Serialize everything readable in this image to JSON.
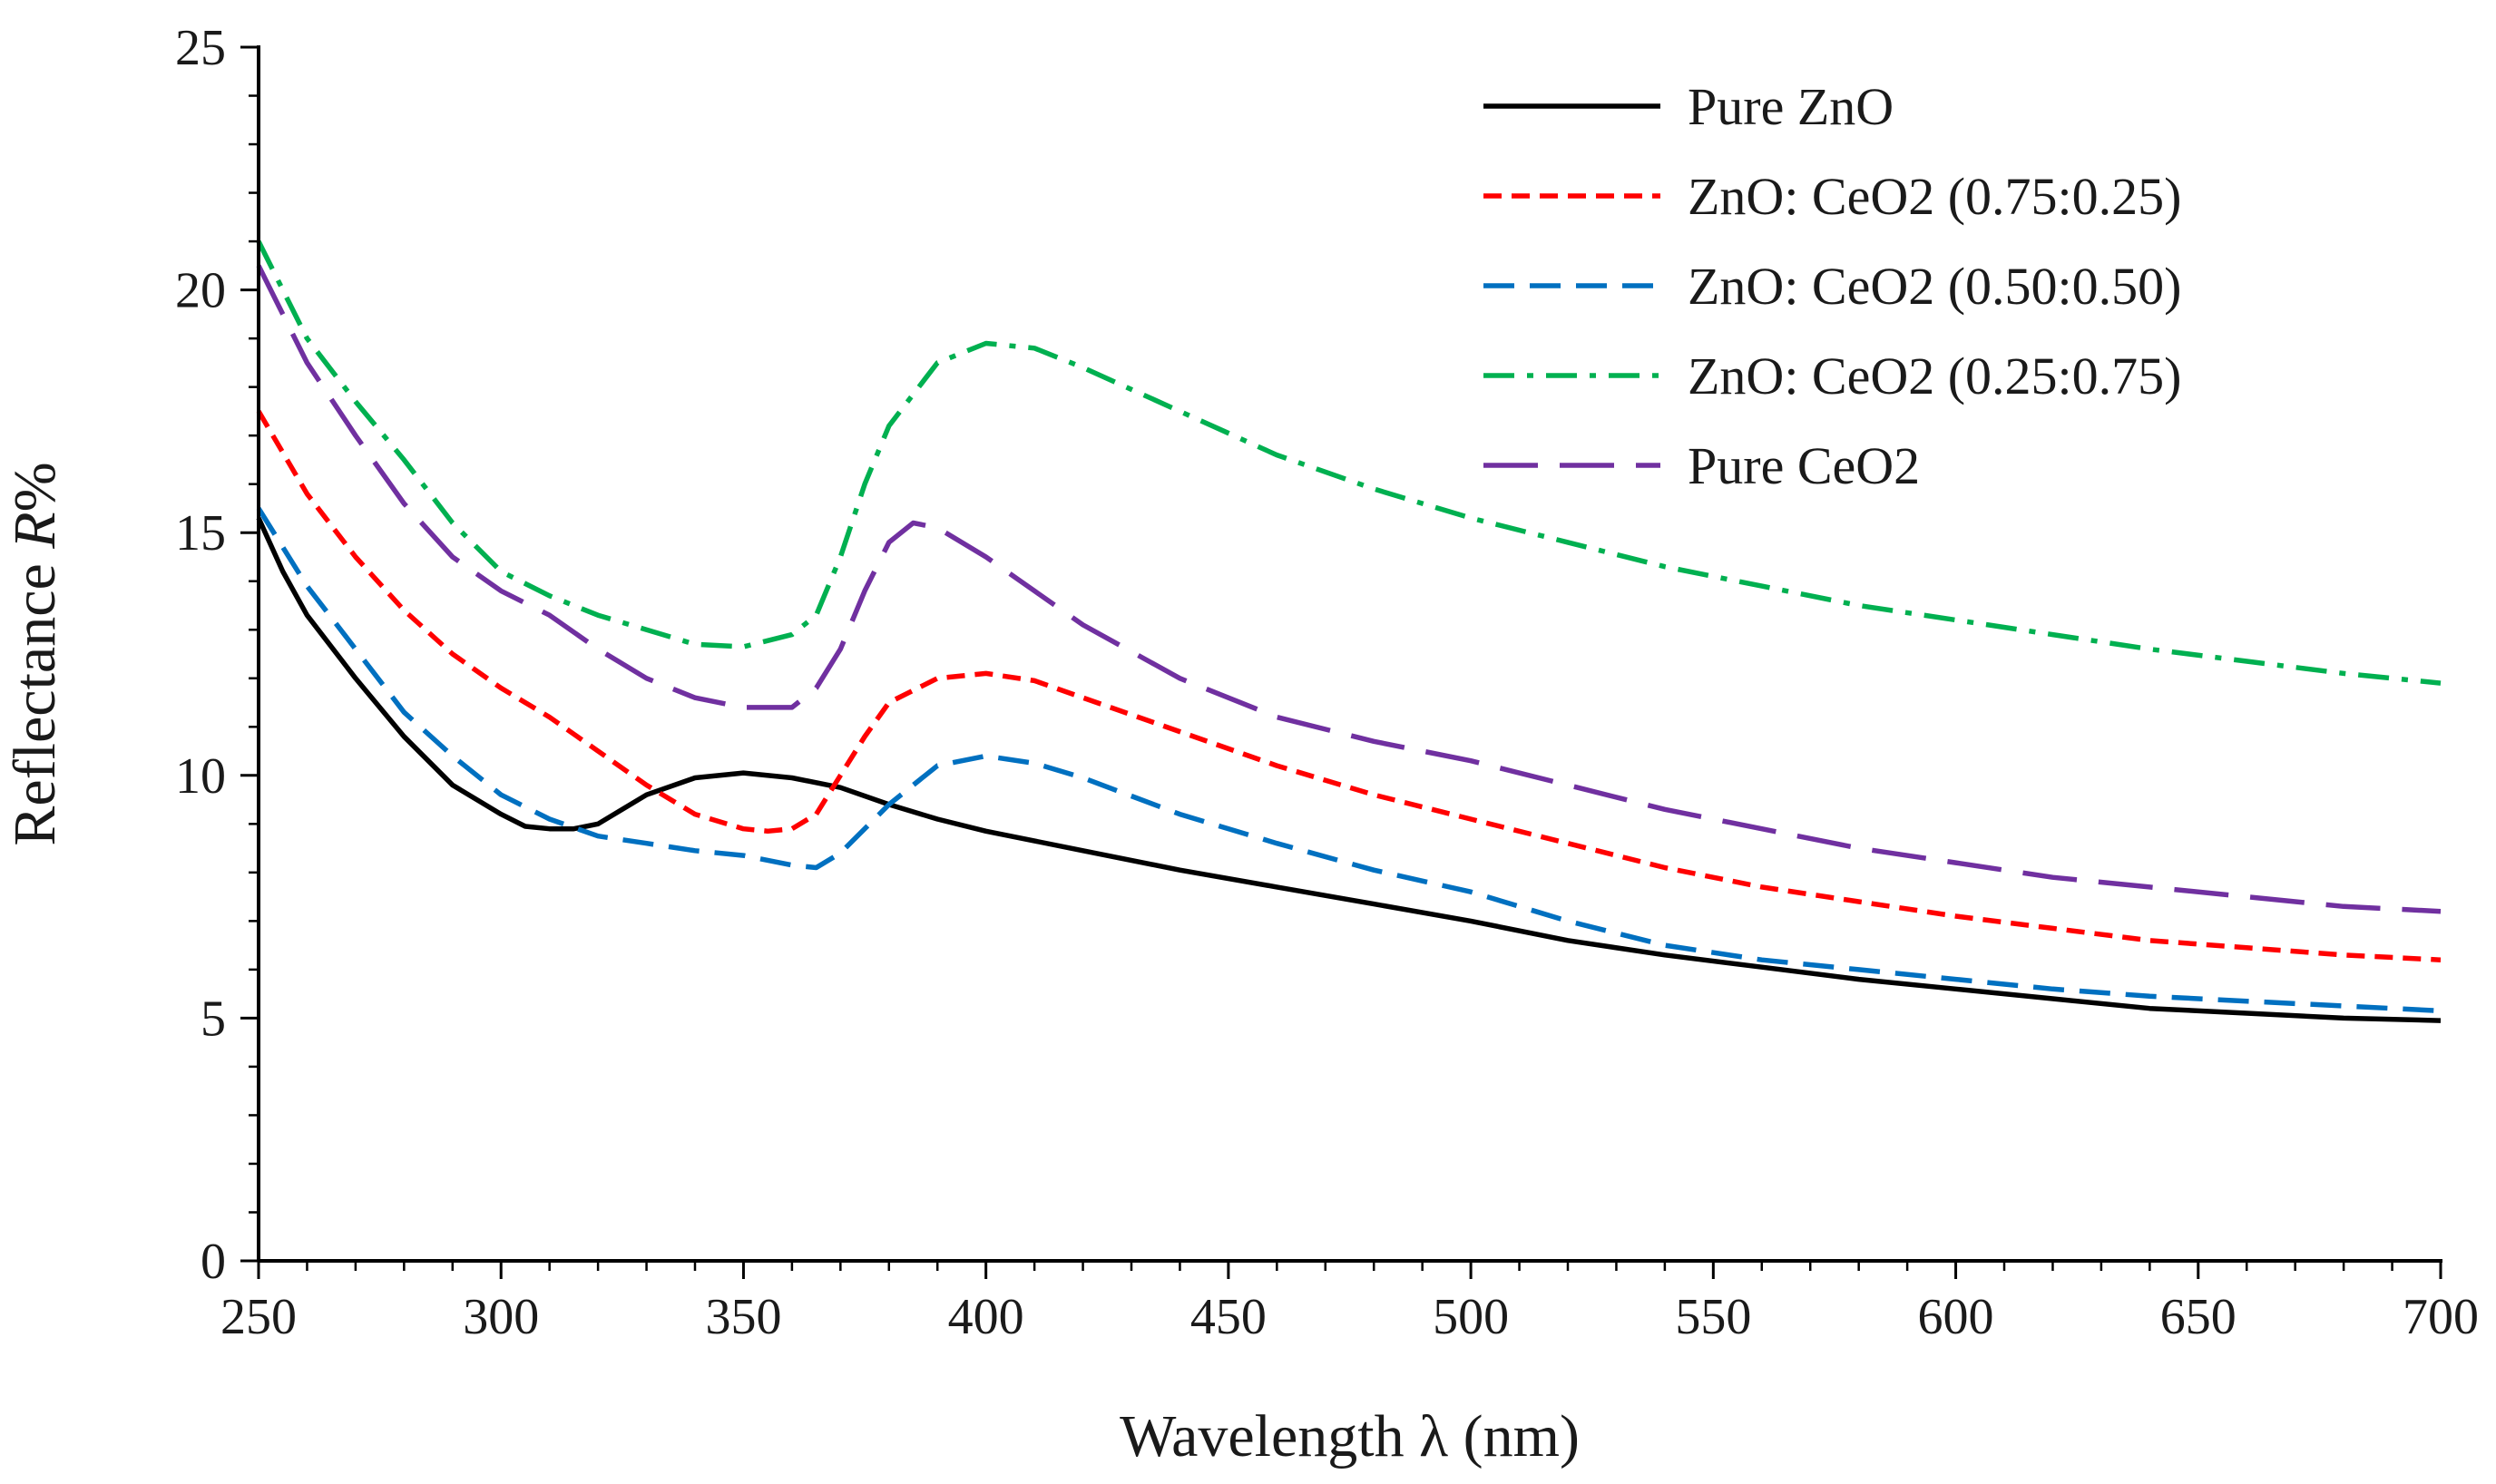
{
  "chart_data": {
    "type": "line",
    "title": "",
    "xlabel": "Wavelength λ (nm)",
    "ylabel_prefix": "Reflectance ",
    "ylabel_italic": "R",
    "ylabel_suffix": "%",
    "xlim": [
      250,
      700
    ],
    "ylim": [
      0,
      25
    ],
    "xticks": [
      250,
      300,
      350,
      400,
      450,
      500,
      550,
      600,
      650,
      700
    ],
    "yticks": [
      0,
      5,
      10,
      15,
      20,
      25
    ],
    "grid": false,
    "legend_position": "top-right",
    "series": [
      {
        "name": "Pure ZnO",
        "color": "#000000",
        "dash": "solid",
        "x": [
          250,
          255,
          260,
          270,
          280,
          290,
          300,
          305,
          310,
          315,
          320,
          330,
          340,
          350,
          360,
          370,
          380,
          390,
          400,
          420,
          440,
          460,
          480,
          500,
          520,
          540,
          560,
          580,
          600,
          620,
          640,
          660,
          680,
          700
        ],
        "y": [
          15.3,
          14.2,
          13.3,
          12.0,
          10.8,
          9.8,
          9.2,
          8.95,
          8.9,
          8.9,
          9.0,
          9.6,
          9.95,
          10.05,
          9.95,
          9.75,
          9.4,
          9.1,
          8.85,
          8.45,
          8.05,
          7.7,
          7.35,
          7.0,
          6.6,
          6.3,
          6.05,
          5.8,
          5.6,
          5.4,
          5.2,
          5.1,
          5.0,
          4.95
        ]
      },
      {
        "name": "ZnO: CeO2 (0.75:0.25)",
        "color": "#ff0000",
        "dash": "short-dash",
        "x": [
          250,
          260,
          270,
          280,
          290,
          300,
          310,
          320,
          330,
          340,
          350,
          355,
          360,
          365,
          370,
          375,
          380,
          390,
          400,
          410,
          420,
          440,
          460,
          480,
          500,
          520,
          540,
          560,
          580,
          600,
          620,
          640,
          660,
          680,
          700
        ],
        "y": [
          17.5,
          15.8,
          14.5,
          13.4,
          12.5,
          11.8,
          11.2,
          10.5,
          9.8,
          9.2,
          8.9,
          8.85,
          8.9,
          9.2,
          10.0,
          10.8,
          11.5,
          12.0,
          12.1,
          11.95,
          11.6,
          10.9,
          10.2,
          9.6,
          9.1,
          8.6,
          8.1,
          7.7,
          7.4,
          7.1,
          6.85,
          6.6,
          6.45,
          6.3,
          6.2
        ]
      },
      {
        "name": "ZnO: CeO2 (0.50:0.50)",
        "color": "#0070c0",
        "dash": "dash",
        "x": [
          250,
          260,
          270,
          280,
          290,
          300,
          310,
          320,
          330,
          340,
          350,
          360,
          365,
          370,
          380,
          390,
          400,
          410,
          420,
          440,
          460,
          480,
          500,
          520,
          540,
          560,
          580,
          600,
          620,
          640,
          660,
          680,
          700
        ],
        "y": [
          15.5,
          13.9,
          12.6,
          11.3,
          10.4,
          9.6,
          9.1,
          8.75,
          8.6,
          8.45,
          8.35,
          8.15,
          8.1,
          8.4,
          9.4,
          10.2,
          10.4,
          10.25,
          9.95,
          9.2,
          8.6,
          8.05,
          7.6,
          7.0,
          6.5,
          6.2,
          6.0,
          5.8,
          5.6,
          5.45,
          5.35,
          5.25,
          5.15
        ]
      },
      {
        "name": "ZnO: CeO2 (0.25:0.75)",
        "color": "#00b050",
        "dash": "dash-dot",
        "x": [
          250,
          260,
          270,
          280,
          290,
          300,
          310,
          320,
          330,
          340,
          350,
          360,
          365,
          370,
          375,
          380,
          390,
          400,
          410,
          420,
          440,
          460,
          480,
          500,
          520,
          540,
          560,
          580,
          600,
          620,
          640,
          660,
          680,
          700
        ],
        "y": [
          21.0,
          19.0,
          17.7,
          16.5,
          15.2,
          14.2,
          13.7,
          13.3,
          13.0,
          12.7,
          12.65,
          12.9,
          13.3,
          14.5,
          16.0,
          17.2,
          18.5,
          18.9,
          18.8,
          18.4,
          17.5,
          16.6,
          15.9,
          15.3,
          14.8,
          14.3,
          13.9,
          13.5,
          13.2,
          12.9,
          12.6,
          12.35,
          12.1,
          11.9
        ]
      },
      {
        "name": "Pure CeO2",
        "color": "#7030a0",
        "dash": "long-dash",
        "x": [
          250,
          260,
          270,
          280,
          290,
          300,
          310,
          320,
          330,
          340,
          350,
          360,
          365,
          370,
          375,
          380,
          385,
          390,
          400,
          410,
          420,
          440,
          460,
          480,
          500,
          520,
          540,
          560,
          580,
          600,
          620,
          640,
          660,
          680,
          700
        ],
        "y": [
          20.5,
          18.5,
          17.0,
          15.6,
          14.5,
          13.8,
          13.3,
          12.6,
          12.0,
          11.6,
          11.4,
          11.4,
          11.8,
          12.6,
          13.8,
          14.8,
          15.2,
          15.1,
          14.5,
          13.8,
          13.1,
          12.0,
          11.2,
          10.7,
          10.3,
          9.8,
          9.3,
          8.9,
          8.5,
          8.2,
          7.9,
          7.7,
          7.5,
          7.3,
          7.2
        ]
      }
    ]
  }
}
